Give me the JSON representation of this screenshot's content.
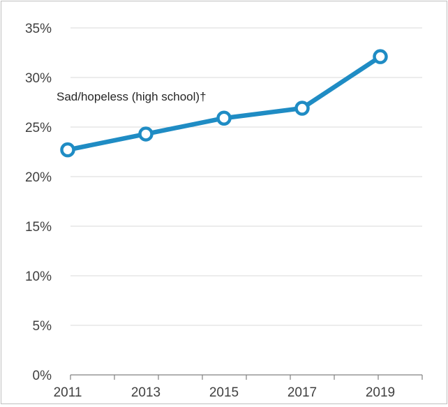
{
  "chart_data": {
    "type": "line",
    "x": [
      "2011",
      "2013",
      "2015",
      "2017",
      "2019"
    ],
    "series": [
      {
        "name": "Sad/hopeless (high school)†",
        "values": [
          22.7,
          24.3,
          25.9,
          26.9,
          32.1
        ]
      }
    ],
    "y_ticks": [
      "0%",
      "5%",
      "10%",
      "15%",
      "20%",
      "25%",
      "30%",
      "35%"
    ],
    "ylim": [
      0,
      35
    ],
    "y_unit": "%",
    "grid": true,
    "legend": "none",
    "colors": {
      "series": "#1f8cc4",
      "grid": "#d9d9d9",
      "axis": "#808080",
      "text": "#404040"
    }
  }
}
